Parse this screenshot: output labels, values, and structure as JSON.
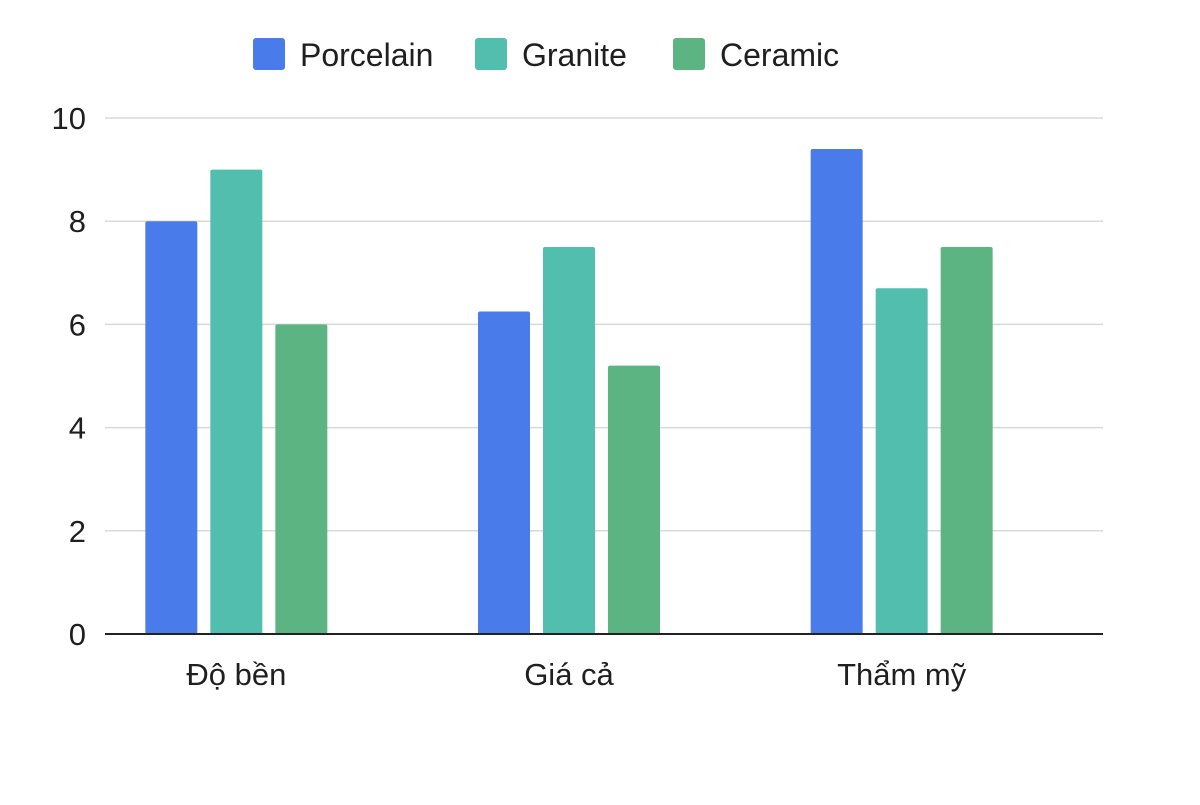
{
  "chart_data": {
    "type": "bar",
    "categories": [
      "Độ bền",
      "Giá cả",
      "Thẩm mỹ"
    ],
    "series": [
      {
        "name": "Porcelain",
        "color": "#4a7bea",
        "values": [
          8.0,
          6.25,
          9.4
        ]
      },
      {
        "name": "Granite",
        "color": "#52bfae",
        "values": [
          9.0,
          7.5,
          6.7
        ]
      },
      {
        "name": "Ceramic",
        "color": "#5bb482",
        "values": [
          6.0,
          5.2,
          7.5
        ]
      }
    ],
    "ylim": [
      0,
      10
    ],
    "yticks": [
      0,
      2,
      4,
      6,
      8,
      10
    ],
    "grid": true,
    "legend_position": "top-center"
  }
}
